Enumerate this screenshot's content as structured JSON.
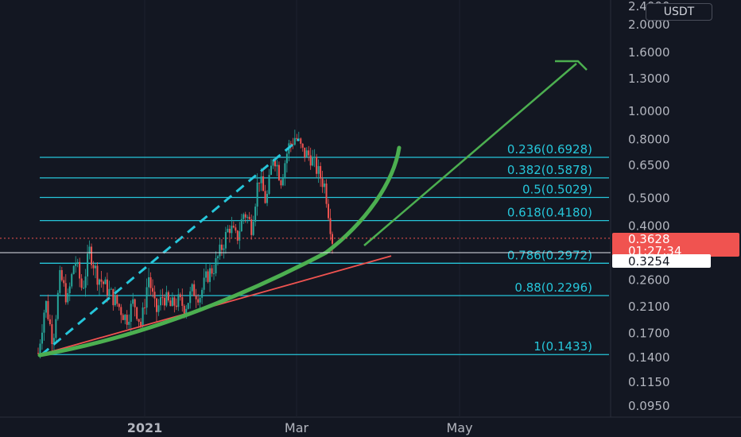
{
  "currency_button": "USDT",
  "chart_data": {
    "type": "candlestick",
    "title": "",
    "y_scale": "log",
    "y_ticks": [
      "2.4000",
      "2.0000",
      "1.6000",
      "1.3000",
      "1.0000",
      "0.8000",
      "0.6500",
      "0.5000",
      "0.4000",
      "0.2600",
      "0.2100",
      "0.1700",
      "0.1400",
      "0.1150",
      "0.0950"
    ],
    "x_ticks": [
      {
        "label": "2021",
        "bold": true
      },
      {
        "label": "Mar",
        "bold": false
      },
      {
        "label": "May",
        "bold": false
      }
    ],
    "fib_levels": [
      {
        "ratio": 0.236,
        "price": 0.6928,
        "label": "0.236(0.6928)"
      },
      {
        "ratio": 0.382,
        "price": 0.5878,
        "label": "0.382(0.5878)"
      },
      {
        "ratio": 0.5,
        "price": 0.5029,
        "label": "0.5(0.5029)"
      },
      {
        "ratio": 0.618,
        "price": 0.418,
        "label": "0.618(0.4180)"
      },
      {
        "ratio": 0.786,
        "price": 0.2972,
        "label": "0.786(0.2972)"
      },
      {
        "ratio": 0.88,
        "price": 0.2296,
        "label": "0.88(0.2296)"
      },
      {
        "ratio": 1,
        "price": 0.1433,
        "label": "1(0.1433)"
      }
    ],
    "current_price": {
      "price": "0.3628",
      "countdown": "01:27:34",
      "color": "#f05350"
    },
    "marker_price": {
      "price": "0.3254"
    },
    "price_path": [
      0.145,
      0.22,
      0.16,
      0.27,
      0.22,
      0.31,
      0.24,
      0.33,
      0.27,
      0.25,
      0.23,
      0.21,
      0.19,
      0.22,
      0.18,
      0.27,
      0.2,
      0.23,
      0.21,
      0.22,
      0.21,
      0.24,
      0.23,
      0.27,
      0.29,
      0.34,
      0.4,
      0.36,
      0.45,
      0.4,
      0.6,
      0.48,
      0.72,
      0.58,
      0.75,
      0.82,
      0.72,
      0.7,
      0.62,
      0.55,
      0.36
    ],
    "annotations": {
      "parabolic_curve_color": "#4caf50",
      "arrow_color": "#4caf50",
      "trendline_color": "#f05350",
      "dashed_channel_color": "#26c6da",
      "fib_color": "#26c6da",
      "up_candle_color": "#26a69a",
      "down_candle_color": "#ef5350"
    }
  }
}
